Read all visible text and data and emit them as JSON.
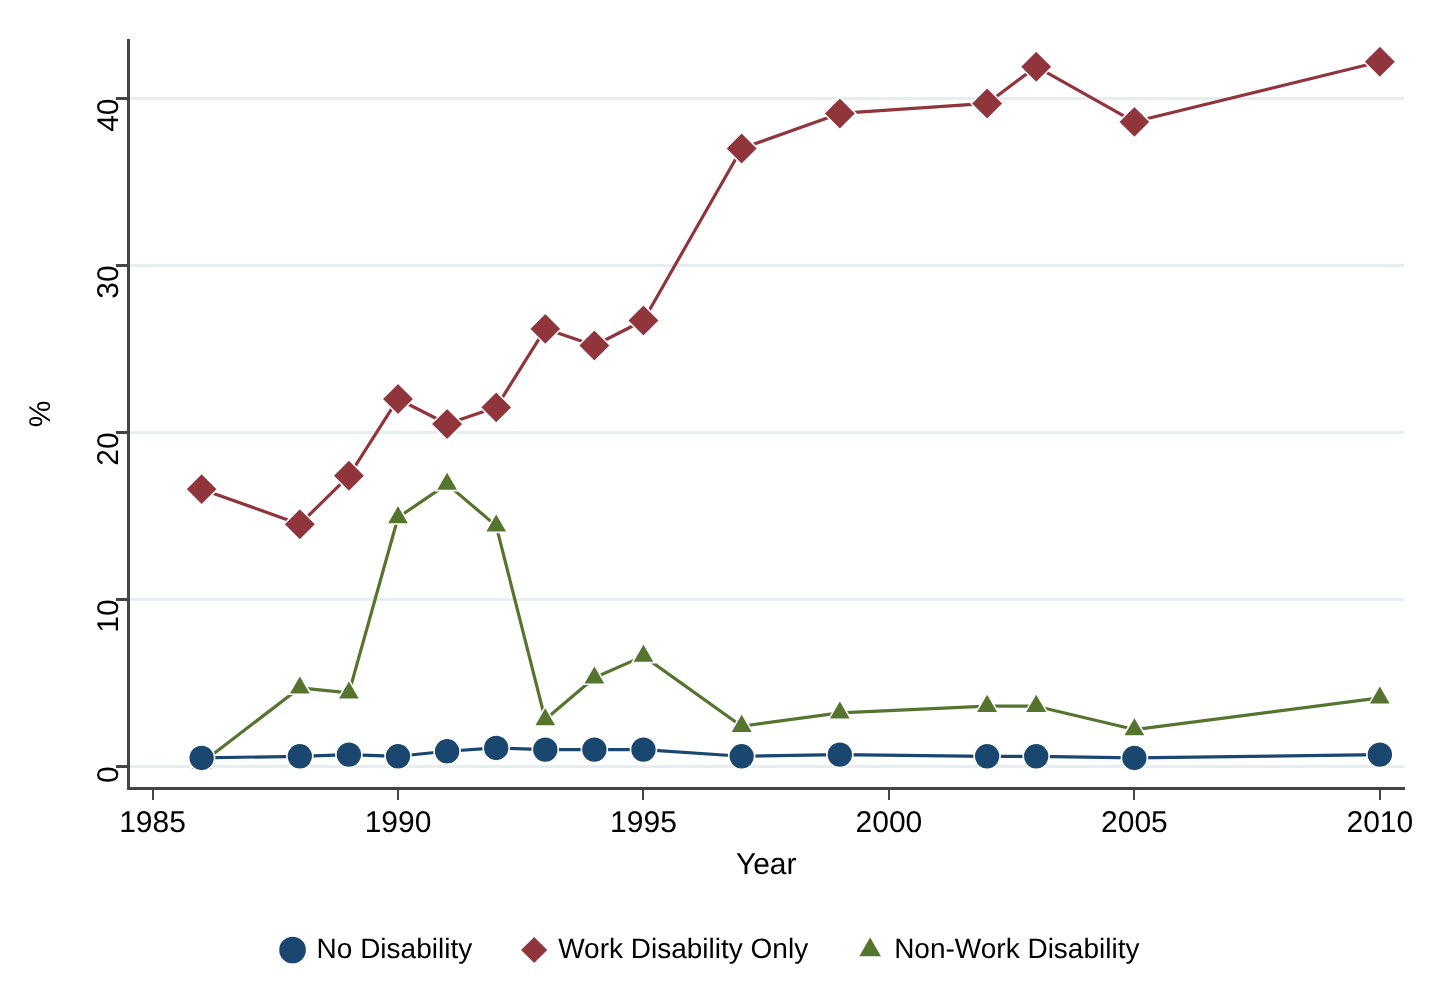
{
  "chart_data": {
    "type": "line",
    "xlabel": "Year",
    "ylabel": "%",
    "x": [
      1986,
      1988,
      1989,
      1990,
      1991,
      1992,
      1993,
      1994,
      1995,
      1997,
      1999,
      2002,
      2003,
      2005,
      2010
    ],
    "series": [
      {
        "name": "No Disability",
        "color": "#1a476f",
        "marker": "circle",
        "values": [
          0.5,
          0.6,
          0.7,
          0.6,
          0.9,
          1.1,
          1.0,
          1.0,
          1.0,
          0.6,
          0.7,
          0.6,
          0.6,
          0.5,
          0.7
        ]
      },
      {
        "name": "Work Disability Only",
        "color": "#90353b",
        "marker": "diamond",
        "values": [
          16.6,
          14.5,
          17.4,
          22.0,
          20.5,
          21.5,
          26.2,
          25.2,
          26.7,
          37.0,
          39.1,
          39.7,
          41.9,
          38.6,
          42.2
        ]
      },
      {
        "name": "Non-Work Disability",
        "color": "#55752f",
        "marker": "triangle",
        "values": [
          0.2,
          4.7,
          4.4,
          14.9,
          16.9,
          14.4,
          2.8,
          5.3,
          6.6,
          2.4,
          3.2,
          3.6,
          3.6,
          2.2,
          4.1
        ]
      }
    ],
    "xlim": [
      1984.5,
      2010.5
    ],
    "xticks": [
      1985,
      1990,
      1995,
      2000,
      2005,
      2010
    ],
    "ylim": [
      -1.3,
      43.5
    ],
    "yticks": [
      0,
      10,
      20,
      30,
      40
    ],
    "grid": "y",
    "legend": "bottom",
    "line_style": "solid"
  }
}
